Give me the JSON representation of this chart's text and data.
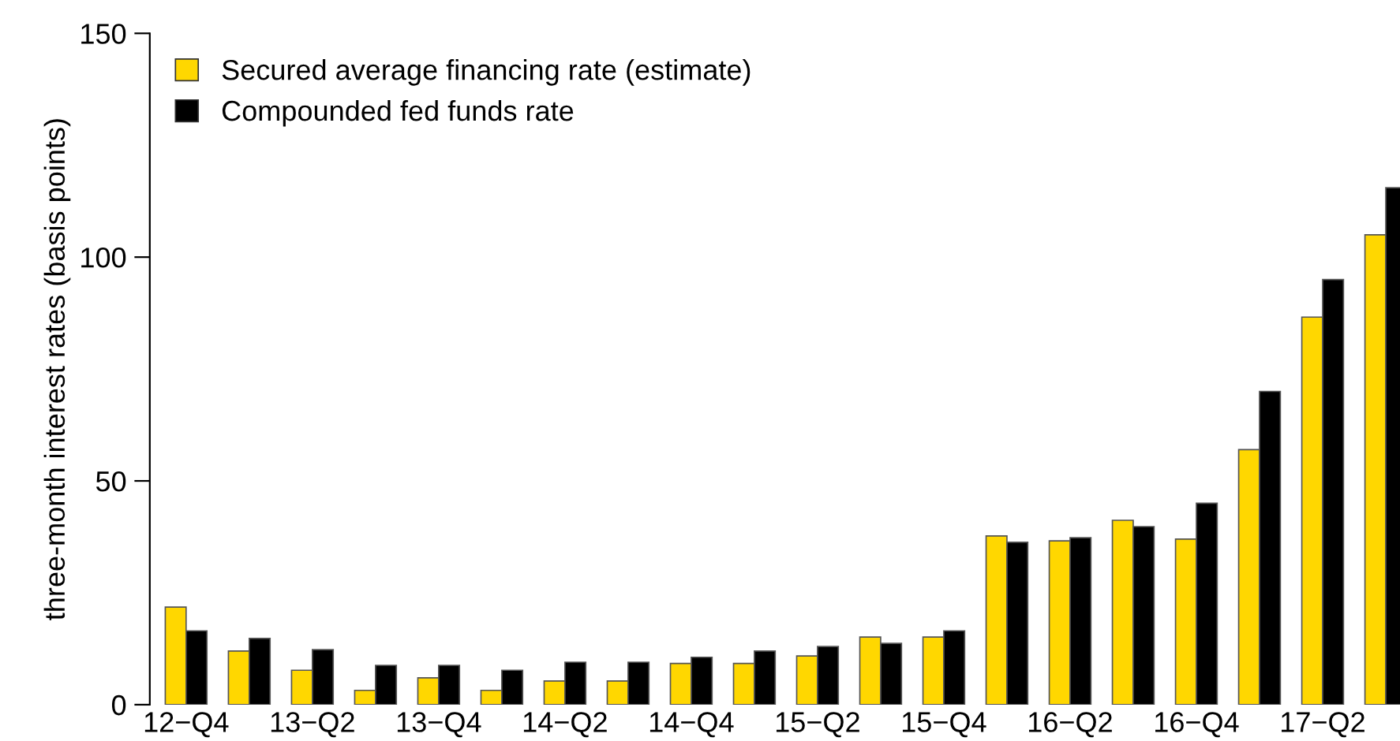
{
  "chart_data": {
    "type": "bar",
    "ylabel": "three-month interest rates (basis points)",
    "categories": [
      "12−Q4",
      null,
      "13−Q2",
      null,
      "13−Q4",
      null,
      "14−Q2",
      null,
      "14−Q4",
      null,
      "15−Q2",
      null,
      "15−Q4",
      null,
      "16−Q2",
      null,
      "16−Q4",
      null,
      "17−Q2",
      null
    ],
    "series": [
      {
        "name": "Secured average financing rate (estimate)",
        "color": "#ffd700",
        "values": [
          21.8,
          12,
          7.7,
          3.2,
          6,
          3.2,
          5.3,
          5.3,
          9.2,
          9.2,
          10.9,
          15.1,
          15.1,
          37.7,
          36.6,
          41.2,
          37,
          57,
          86.6,
          105
        ]
      },
      {
        "name": "Compounded fed funds rate",
        "color": "#000000",
        "values": [
          16.5,
          14.8,
          12.3,
          8.8,
          8.8,
          7.7,
          9.5,
          9.5,
          10.6,
          12,
          13,
          13.7,
          16.5,
          36.3,
          37.3,
          39.8,
          45,
          70,
          95,
          115.5
        ]
      }
    ],
    "ylim": [
      0,
      150
    ],
    "yticks": [
      0,
      50,
      100,
      150
    ],
    "grid": false,
    "legend": "top left"
  }
}
